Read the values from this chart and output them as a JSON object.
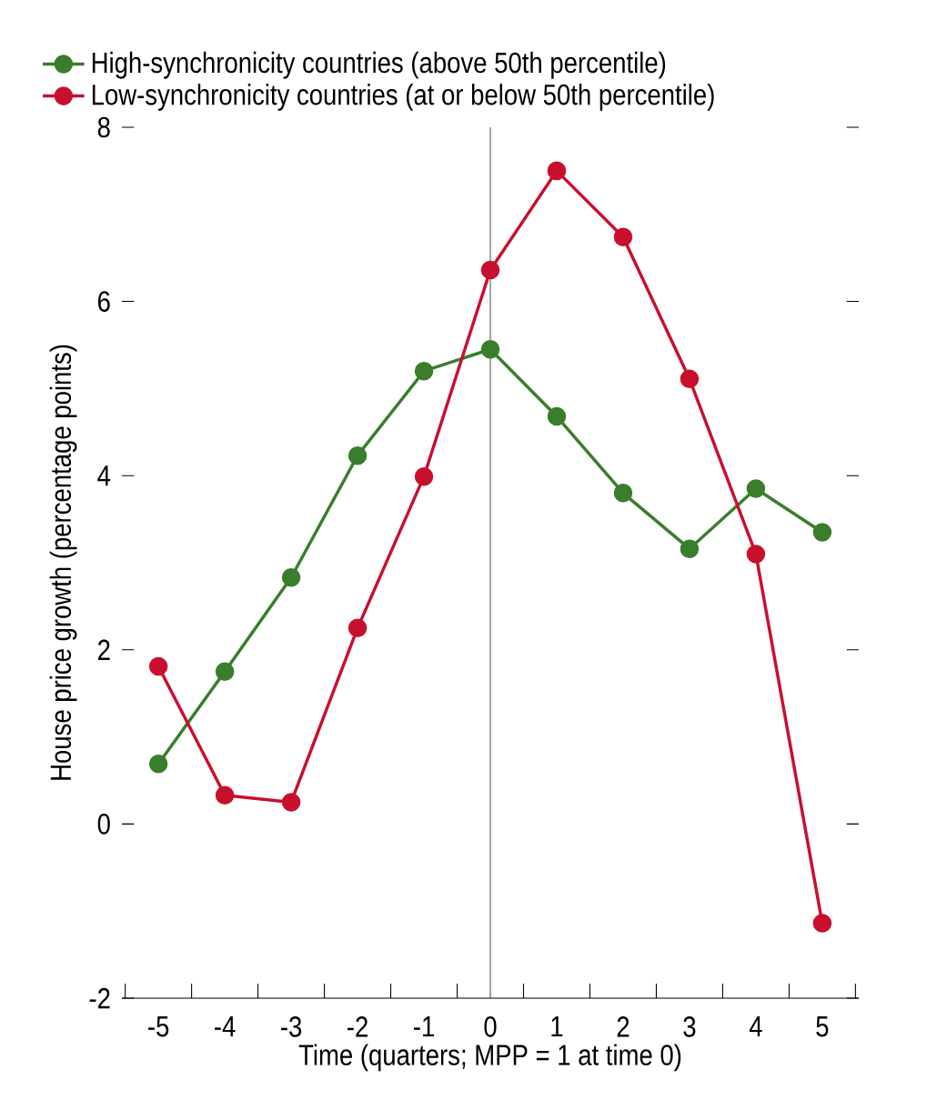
{
  "chart_data": {
    "type": "line",
    "xlabel": "Time (quarters; MPP = 1 at time 0)",
    "ylabel": "House price growth (percentage points)",
    "x": [
      -5,
      -4,
      -3,
      -2,
      -1,
      0,
      1,
      2,
      3,
      4,
      5
    ],
    "series": [
      {
        "name": "High-synchronicity countries (above 50th percentile)",
        "color": "#3a7d2c",
        "values": [
          0.69,
          1.75,
          2.83,
          4.23,
          5.2,
          5.45,
          4.68,
          3.8,
          3.16,
          3.85,
          3.35
        ]
      },
      {
        "name": "Low-synchronicity countries (at or below 50th percentile)",
        "color": "#c8102e",
        "values": [
          1.81,
          0.33,
          0.25,
          2.25,
          3.99,
          6.36,
          7.5,
          6.74,
          5.11,
          3.1,
          -1.14
        ]
      }
    ],
    "xlim": [
      -5.55,
      5.55
    ],
    "xticks": [
      {
        "value": -5.5,
        "label": null
      },
      -5,
      {
        "value": -4.5,
        "label": null
      },
      -4,
      {
        "value": -3.5,
        "label": null
      },
      -3,
      {
        "value": -2.5,
        "label": null
      },
      -2,
      {
        "value": -1.5,
        "label": null
      },
      -1,
      {
        "value": -0.5,
        "label": null
      },
      0,
      {
        "value": 0.5,
        "label": null
      },
      1,
      {
        "value": 1.5,
        "label": null
      },
      2,
      {
        "value": 2.5,
        "label": null
      },
      3,
      {
        "value": 3.5,
        "label": null
      },
      4,
      {
        "value": 4.5,
        "label": null
      },
      5,
      {
        "value": 5.5,
        "label": null
      }
    ],
    "ylim": [
      -2,
      8
    ],
    "yticks": [
      -2,
      0,
      2,
      4,
      6,
      8
    ],
    "ref_lines": [
      {
        "axis": "x",
        "value": 0,
        "color": "#555555"
      }
    ],
    "legend": "top left",
    "marker": "circle",
    "line_style": "solid",
    "grid": false
  }
}
